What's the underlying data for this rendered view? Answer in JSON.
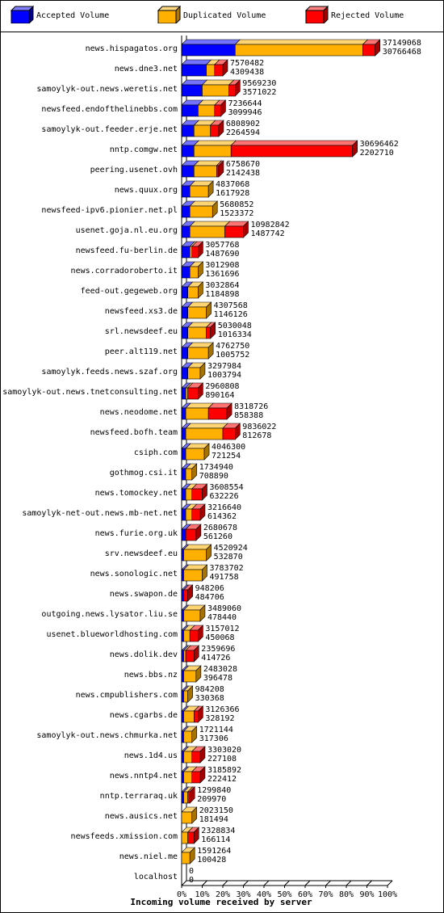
{
  "legend": {
    "accepted": "Accepted Volume",
    "duplicated": "Duplicated Volume",
    "rejected": "Rejected Volume"
  },
  "colors": {
    "accepted": "#0000ff",
    "duplicated": "#ffb000",
    "rejected": "#ff0000",
    "unknown": "#c08000"
  },
  "chart_data": {
    "type": "bar",
    "orientation": "horizontal",
    "stacked": true,
    "xlabel": "Incoming volume received by server",
    "x_ticks": [
      "0%",
      "10%",
      "20%",
      "30%",
      "40%",
      "50%",
      "60%",
      "70%",
      "80%",
      "90%",
      "100%"
    ],
    "xlim": [
      0,
      100
    ],
    "series_names": [
      "Accepted Volume",
      "Duplicated Volume",
      "Rejected Volume"
    ],
    "rows": [
      {
        "server": "news.hispagatos.org",
        "total": "37149068",
        "accepted": "30766468",
        "seg": [
          26,
          88,
          94
        ]
      },
      {
        "server": "news.dne3.net",
        "total": "7570482",
        "accepted": "4309438",
        "seg": [
          12,
          16,
          20
        ]
      },
      {
        "server": "samoylyk-out.news.weretis.net",
        "total": "9569230",
        "accepted": "3571022",
        "seg": [
          10,
          23,
          26
        ]
      },
      {
        "server": "newsfeed.endofthelinebbs.com",
        "total": "7236644",
        "accepted": "3099946",
        "seg": [
          8,
          16,
          19
        ]
      },
      {
        "server": "samoylyk-out.feeder.erje.net",
        "total": "6808902",
        "accepted": "2264594",
        "seg": [
          6,
          14,
          18
        ]
      },
      {
        "server": "nntp.comgw.net",
        "total": "30696462",
        "accepted": "2202710",
        "seg": [
          6,
          24,
          83
        ]
      },
      {
        "server": "peering.usenet.ovh",
        "total": "6758670",
        "accepted": "2142438",
        "seg": [
          6,
          17,
          18
        ]
      },
      {
        "server": "news.quux.org",
        "total": "4837068",
        "accepted": "1617928",
        "seg": [
          4,
          13,
          13
        ]
      },
      {
        "server": "newsfeed-ipv6.pionier.net.pl",
        "total": "5680852",
        "accepted": "1523372",
        "seg": [
          4,
          15,
          15
        ]
      },
      {
        "server": "usenet.goja.nl.eu.org",
        "total": "10982842",
        "accepted": "1487742",
        "seg": [
          4,
          21,
          30
        ]
      },
      {
        "server": "newsfeed.fu-berlin.de",
        "total": "3057768",
        "accepted": "1487690",
        "seg": [
          4,
          5,
          8
        ]
      },
      {
        "server": "news.corradoroberto.it",
        "total": "3012908",
        "accepted": "1361696",
        "seg": [
          4,
          8,
          8
        ]
      },
      {
        "server": "feed-out.gegeweb.org",
        "total": "3032864",
        "accepted": "1184898",
        "seg": [
          3,
          8,
          8
        ]
      },
      {
        "server": "newsfeed.xs3.de",
        "total": "4307568",
        "accepted": "1146126",
        "seg": [
          3,
          12,
          12
        ]
      },
      {
        "server": "srl.newsdeef.eu",
        "total": "5030048",
        "accepted": "1016334",
        "seg": [
          3,
          12,
          14
        ]
      },
      {
        "server": "peer.alt119.net",
        "total": "4762750",
        "accepted": "1005752",
        "seg": [
          3,
          13,
          13
        ]
      },
      {
        "server": "samoylyk.feeds.news.szaf.org",
        "total": "3297984",
        "accepted": "1003794",
        "seg": [
          3,
          9,
          9
        ]
      },
      {
        "server": "samoylyk-out.news.tnetconsulting.net",
        "total": "2960808",
        "accepted": "890164",
        "seg": [
          2,
          3,
          8
        ]
      },
      {
        "server": "news.neodome.net",
        "total": "8318726",
        "accepted": "858388",
        "seg": [
          2,
          13,
          22
        ]
      },
      {
        "server": "newsfeed.bofh.team",
        "total": "9836022",
        "accepted": "812678",
        "seg": [
          2,
          20,
          26
        ]
      },
      {
        "server": "csiph.com",
        "total": "4046300",
        "accepted": "721254",
        "seg": [
          2,
          11,
          11
        ]
      },
      {
        "server": "gothmog.csi.it",
        "total": "1734940",
        "accepted": "708890",
        "seg": [
          2,
          5,
          5
        ]
      },
      {
        "server": "news.tomockey.net",
        "total": "3608554",
        "accepted": "632226",
        "seg": [
          2,
          5,
          10
        ]
      },
      {
        "server": "samoylyk-net-out.news.mb-net.net",
        "total": "3216640",
        "accepted": "614362",
        "seg": [
          2,
          5,
          9
        ]
      },
      {
        "server": "news.furie.org.uk",
        "total": "2680678",
        "accepted": "561260",
        "seg": [
          2,
          2,
          7
        ]
      },
      {
        "server": "srv.newsdeef.eu",
        "total": "4520924",
        "accepted": "532870",
        "seg": [
          1,
          12,
          12
        ]
      },
      {
        "server": "news.sonologic.net",
        "total": "3783702",
        "accepted": "491758",
        "seg": [
          1,
          10,
          10
        ]
      },
      {
        "server": "news.swapon.de",
        "total": "948206",
        "accepted": "484706",
        "seg": [
          1,
          1,
          3
        ]
      },
      {
        "server": "outgoing.news.lysator.liu.se",
        "total": "3489060",
        "accepted": "478440",
        "seg": [
          1,
          9,
          9
        ]
      },
      {
        "server": "usenet.blueworldhosting.com",
        "total": "3157012",
        "accepted": "450068",
        "seg": [
          1,
          4,
          8
        ]
      },
      {
        "server": "news.dolik.dev",
        "total": "2359696",
        "accepted": "414726",
        "seg": [
          1,
          2,
          6
        ]
      },
      {
        "server": "news.bbs.nz",
        "total": "2483028",
        "accepted": "396478",
        "seg": [
          1,
          7,
          7
        ]
      },
      {
        "server": "news.cmpublishers.com",
        "total": "984208",
        "accepted": "330368",
        "seg": [
          1,
          3,
          3
        ]
      },
      {
        "server": "news.cgarbs.de",
        "total": "3126366",
        "accepted": "328192",
        "seg": [
          1,
          6,
          8
        ]
      },
      {
        "server": "samoylyk-out.news.chmurka.net",
        "total": "1721144",
        "accepted": "317306",
        "seg": [
          1,
          5,
          5
        ]
      },
      {
        "server": "news.1d4.us",
        "total": "3303020",
        "accepted": "227108",
        "seg": [
          1,
          5,
          9
        ]
      },
      {
        "server": "news.nntp4.net",
        "total": "3185892",
        "accepted": "222412",
        "seg": [
          1,
          5,
          9
        ]
      },
      {
        "server": "nntp.terraraq.uk",
        "total": "1299840",
        "accepted": "209970",
        "seg": [
          1,
          3,
          4
        ]
      },
      {
        "server": "news.ausics.net",
        "total": "2023150",
        "accepted": "181494",
        "seg": [
          0,
          5,
          5
        ]
      },
      {
        "server": "newsfeeds.xmission.com",
        "total": "2328834",
        "accepted": "166114",
        "seg": [
          0,
          3,
          6
        ]
      },
      {
        "server": "news.niel.me",
        "total": "1591264",
        "accepted": "100428",
        "seg": [
          0,
          4,
          4
        ]
      },
      {
        "server": "localhost",
        "total": "0",
        "accepted": "0",
        "seg": [
          0,
          0,
          0
        ]
      }
    ]
  }
}
